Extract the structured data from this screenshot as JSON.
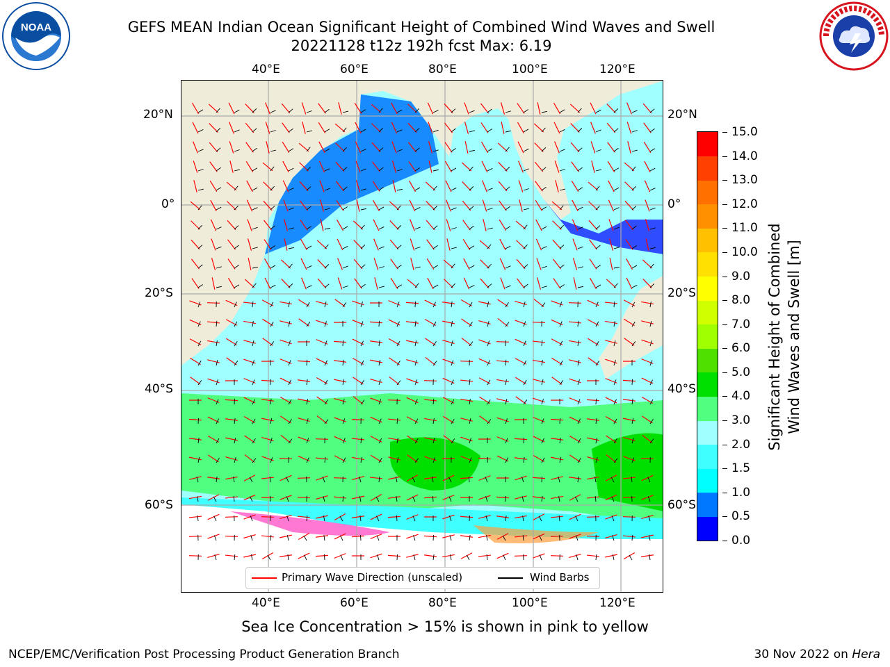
{
  "header": {
    "title_line1": "GEFS MEAN Indian Ocean Significant Height of Combined Wind Waves and Swell",
    "title_line2": "20221128 t12z 192h fcst   Max: 6.19"
  },
  "logos": {
    "left": {
      "name": "NOAA",
      "text": "NOAA",
      "color": "#0a4ea2"
    },
    "right": {
      "name": "NATIONAL WEATHER SERVICE",
      "color": "#d8141e"
    }
  },
  "map": {
    "lon_ticks": [
      "40°E",
      "60°E",
      "80°E",
      "100°E",
      "120°E"
    ],
    "lat_ticks": [
      "20°N",
      "0°",
      "20°S",
      "40°S",
      "60°S"
    ],
    "land_color": "#efecd9",
    "ice_note": "Sea Ice Concentration > 15% is shown in pink to yellow"
  },
  "colorbar": {
    "label_line1": "Significant Height of Combined",
    "label_line2": "Wind Waves and Swell [m]",
    "ticks": [
      "0.0",
      "0.5",
      "1.0",
      "1.5",
      "2.0",
      "3.0",
      "4.0",
      "5.0",
      "6.0",
      "7.0",
      "8.0",
      "9.0",
      "10.0",
      "11.0",
      "12.0",
      "13.0",
      "14.0",
      "15.0"
    ],
    "colors": [
      "#0000ff",
      "#0078ff",
      "#00ffff",
      "#40ffff",
      "#a0ffff",
      "#50ff80",
      "#00e000",
      "#50e000",
      "#a0ff00",
      "#d0ff00",
      "#ffff00",
      "#ffe000",
      "#ffc000",
      "#ff9000",
      "#ff7000",
      "#ff4000",
      "#ff0000"
    ]
  },
  "legend": {
    "wave_label": "Primary Wave Direction (unscaled)",
    "wind_label": "Wind Barbs",
    "wave_color": "#ff0000",
    "wind_color": "#000000"
  },
  "footer": {
    "left": "NCEP/EMC/Verification Post Processing Product Generation Branch",
    "right_date": "30 Nov 2022 on ",
    "right_host": "Hera"
  },
  "chart_data": {
    "type": "map",
    "title": "GEFS MEAN Indian Ocean Significant Height of Combined Wind Waves and Swell",
    "max_value": 6.19,
    "units": "m",
    "lon_range": [
      20,
      130
    ],
    "lat_range": [
      -76,
      26
    ]
  }
}
